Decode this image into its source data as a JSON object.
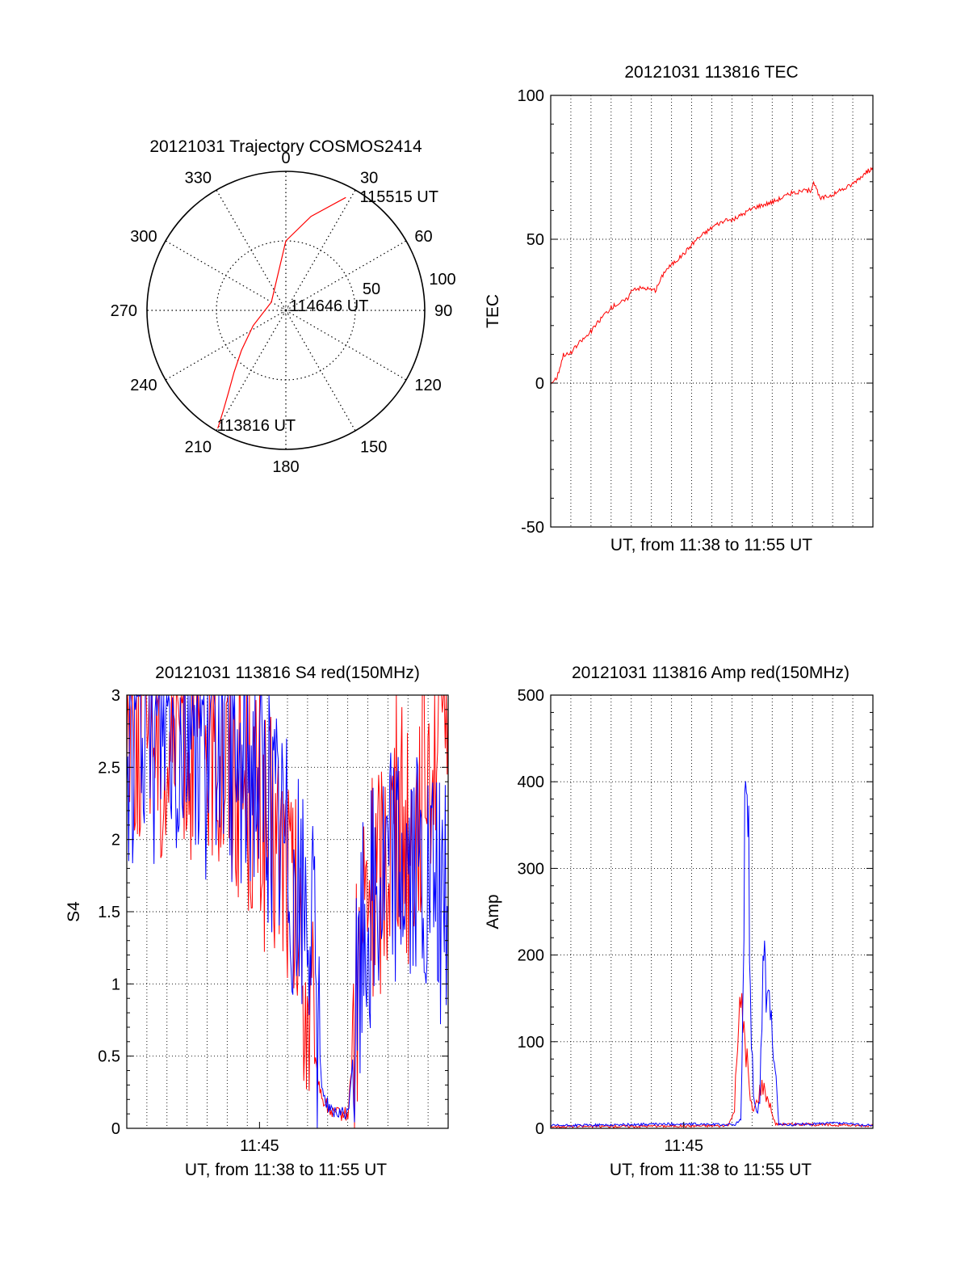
{
  "colors": {
    "red": "#ff0000",
    "blue": "#0000ff",
    "axis": "#000000",
    "grid": "#000000"
  },
  "chart_data": [
    {
      "id": "trajectory",
      "type": "polar",
      "title": "20121031 Trajectory COSMOS2414",
      "angle_labels": [
        "0",
        "30",
        "60",
        "90",
        "120",
        "150",
        "180",
        "210",
        "240",
        "270",
        "300",
        "330"
      ],
      "angles_deg": [
        0,
        30,
        60,
        90,
        120,
        150,
        180,
        210,
        240,
        270,
        300,
        330
      ],
      "radial_ticks": [
        50,
        100
      ],
      "radial_tick_labels": [
        "50",
        "100"
      ],
      "r_max": 100,
      "trajectory": {
        "color": "red",
        "points": [
          {
            "az": 210,
            "zen": 98
          },
          {
            "az": 212,
            "zen": 85
          },
          {
            "az": 215,
            "zen": 72
          },
          {
            "az": 220,
            "zen": 58
          },
          {
            "az": 228,
            "zen": 43
          },
          {
            "az": 245,
            "zen": 26
          },
          {
            "az": 300,
            "zen": 12
          },
          {
            "az": 0,
            "zen": 50
          },
          {
            "az": 15,
            "zen": 70
          },
          {
            "az": 28,
            "zen": 92
          }
        ]
      },
      "annotations": [
        {
          "text": "113816 UT",
          "az": 212,
          "zen": 98
        },
        {
          "text": "114646 UT",
          "az": 10,
          "zen": 3
        },
        {
          "text": "115515 UT",
          "az": 32,
          "zen": 96
        }
      ]
    },
    {
      "id": "tec",
      "type": "line",
      "title": "20121031 113816 TEC",
      "xlabel": "UT, from 11:38 to 11:55 UT",
      "ylabel": "TEC",
      "xlim": [
        0,
        1017
      ],
      "ylim": [
        -50,
        100
      ],
      "yticks": [
        -50,
        0,
        50,
        100
      ],
      "ytick_labels": [
        "-50",
        "0",
        "50",
        "100"
      ],
      "xticks": [],
      "xtick_labels": [],
      "vgrid_count": 16,
      "hgrid": [
        0,
        50
      ],
      "series": [
        {
          "color": "red",
          "x": [
            0,
            20,
            40,
            60,
            90,
            120,
            170,
            200,
            240,
            260,
            300,
            330,
            360,
            420,
            460,
            520,
            540,
            580,
            640,
            700,
            760,
            820,
            830,
            850,
            900,
            950,
            970,
            1017
          ],
          "y": [
            0,
            2,
            10,
            10,
            14,
            17,
            24,
            27,
            29,
            33,
            33,
            32,
            39,
            45,
            50,
            55,
            56,
            57,
            61,
            63,
            66,
            67,
            70,
            64,
            66,
            69,
            71,
            75
          ]
        }
      ]
    },
    {
      "id": "s4",
      "type": "line",
      "title": "20121031 113816 S4 red(150MHz)",
      "xlabel": "UT, from 11:38 to 11:55 UT",
      "ylabel": "S4",
      "xlim": [
        0,
        1017
      ],
      "ylim": [
        0,
        3
      ],
      "yticks": [
        0,
        0.5,
        1,
        1.5,
        2,
        2.5,
        3
      ],
      "ytick_labels": [
        "0",
        "0.5",
        "1",
        "1.5",
        "2",
        "2.5",
        "3"
      ],
      "xticks": [
        420
      ],
      "xtick_labels": [
        "11:45"
      ],
      "vgrid_count": 16,
      "hgrid": [
        0.5,
        1,
        1.5,
        2,
        2.5
      ],
      "series": [
        {
          "color": "red",
          "x": [
            0,
            40,
            80,
            120,
            160,
            200,
            250,
            300,
            350,
            400,
            450,
            500,
            520,
            540,
            560,
            580,
            600,
            620,
            650,
            700,
            750,
            800,
            850,
            900,
            950,
            1017
          ],
          "y": [
            3,
            2.8,
            3,
            2.5,
            3,
            2.7,
            2.8,
            2.6,
            2.5,
            2.3,
            2.0,
            1.9,
            1.6,
            1.3,
            1.0,
            0.7,
            0.4,
            0.2,
            0.1,
            0.1,
            1.5,
            1.8,
            2.2,
            2.0,
            2.6,
            3
          ]
        },
        {
          "color": "blue",
          "x": [
            0,
            40,
            80,
            120,
            160,
            200,
            250,
            300,
            350,
            400,
            450,
            500,
            520,
            540,
            560,
            580,
            600,
            620,
            650,
            700,
            750,
            800,
            850,
            900,
            950,
            1017
          ],
          "y": [
            2.5,
            3,
            2.6,
            3,
            2.7,
            3,
            2.6,
            2.9,
            2.4,
            2.6,
            2.2,
            2.0,
            1.8,
            1.6,
            1.5,
            1.5,
            0.8,
            0.25,
            0.1,
            0.1,
            1.4,
            1.7,
            1.9,
            1.8,
            1.6,
            1.5
          ]
        }
      ]
    },
    {
      "id": "amp",
      "type": "line",
      "title": "20121031 113816 Amp red(150MHz)",
      "xlabel": "UT, from 11:38 to 11:55 UT",
      "ylabel": "Amp",
      "xlim": [
        0,
        1017
      ],
      "ylim": [
        0,
        500
      ],
      "yticks": [
        0,
        100,
        200,
        300,
        400,
        500
      ],
      "ytick_labels": [
        "0",
        "100",
        "200",
        "300",
        "400",
        "500"
      ],
      "xticks": [
        420
      ],
      "xtick_labels": [
        "11:45"
      ],
      "vgrid_count": 16,
      "hgrid": [
        100,
        200,
        300,
        400
      ],
      "series": [
        {
          "color": "red",
          "x": [
            0,
            560,
            580,
            590,
            600,
            610,
            620,
            630,
            640,
            650,
            660,
            670,
            680,
            690,
            700,
            710,
            1017
          ],
          "y": [
            2,
            3,
            20,
            110,
            140,
            120,
            80,
            30,
            20,
            30,
            45,
            50,
            40,
            30,
            15,
            5,
            3
          ]
        },
        {
          "color": "blue",
          "x": [
            0,
            400,
            580,
            600,
            610,
            615,
            620,
            625,
            630,
            640,
            650,
            660,
            670,
            675,
            680,
            690,
            700,
            720,
            740,
            900,
            1017
          ],
          "y": [
            3,
            5,
            4,
            10,
            180,
            460,
            420,
            320,
            160,
            40,
            20,
            30,
            200,
            180,
            160,
            130,
            110,
            5,
            4,
            6,
            3
          ]
        }
      ]
    }
  ]
}
